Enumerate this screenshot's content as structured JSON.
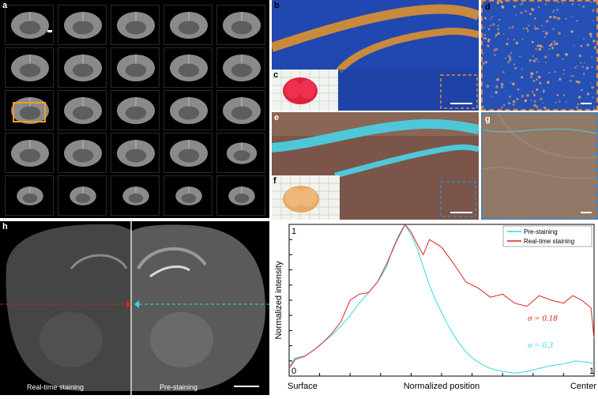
{
  "panel_labels": {
    "a": "a",
    "b": "b",
    "c": "c",
    "d": "d",
    "e": "e",
    "f": "f",
    "g": "g",
    "h": "h"
  },
  "panel_h": {
    "left_caption": "Real-time staining",
    "right_caption": "Pre-staining"
  },
  "colors": {
    "red_series": "#e02020",
    "cyan_series": "#30d8e8",
    "orange_box": "#f0a020",
    "orange_dash": "#e08b3a",
    "blue_dash": "#3a86c8"
  },
  "chart_data": {
    "type": "line",
    "xlabel": "Normalized position",
    "ylabel": "Normalized intensity",
    "x_ticks_left": "Surface",
    "x_ticks_right": "Center",
    "corner_zero": "0",
    "corner_one_x": "1",
    "corner_one_y": "1",
    "xlim": [
      0,
      1
    ],
    "ylim": [
      0,
      1
    ],
    "legend_position": "top-right",
    "series": [
      {
        "name": "Pre-staining",
        "color": "#30d8e8",
        "sigma_label": "σ = 0.3",
        "x": [
          0,
          0.02,
          0.05,
          0.08,
          0.11,
          0.14,
          0.17,
          0.2,
          0.23,
          0.26,
          0.29,
          0.32,
          0.34,
          0.36,
          0.38,
          0.4,
          0.42,
          0.44,
          0.46,
          0.48,
          0.5,
          0.52,
          0.54,
          0.56,
          0.58,
          0.6,
          0.63,
          0.66,
          0.7,
          0.74,
          0.78,
          0.82,
          0.86,
          0.9,
          0.94,
          0.98,
          1.0
        ],
        "y": [
          0.06,
          0.12,
          0.13,
          0.17,
          0.22,
          0.27,
          0.33,
          0.4,
          0.48,
          0.55,
          0.62,
          0.72,
          0.84,
          0.93,
          1.0,
          0.93,
          0.84,
          0.72,
          0.6,
          0.5,
          0.42,
          0.34,
          0.27,
          0.21,
          0.16,
          0.12,
          0.08,
          0.05,
          0.03,
          0.02,
          0.03,
          0.05,
          0.07,
          0.08,
          0.1,
          0.09,
          0.08
        ]
      },
      {
        "name": "Real-time staining",
        "color": "#e02020",
        "sigma_label": "σ = 0.18",
        "x": [
          0,
          0.02,
          0.05,
          0.08,
          0.11,
          0.14,
          0.17,
          0.2,
          0.23,
          0.26,
          0.29,
          0.32,
          0.35,
          0.38,
          0.4,
          0.42,
          0.44,
          0.46,
          0.5,
          0.54,
          0.58,
          0.62,
          0.66,
          0.7,
          0.74,
          0.78,
          0.82,
          0.86,
          0.9,
          0.93,
          0.96,
          0.99,
          1.0
        ],
        "y": [
          0.05,
          0.11,
          0.13,
          0.17,
          0.22,
          0.28,
          0.36,
          0.5,
          0.54,
          0.55,
          0.62,
          0.74,
          0.88,
          1.0,
          0.95,
          0.87,
          0.8,
          0.9,
          0.85,
          0.74,
          0.62,
          0.58,
          0.52,
          0.54,
          0.48,
          0.46,
          0.53,
          0.5,
          0.48,
          0.53,
          0.5,
          0.45,
          0.25
        ]
      }
    ]
  }
}
